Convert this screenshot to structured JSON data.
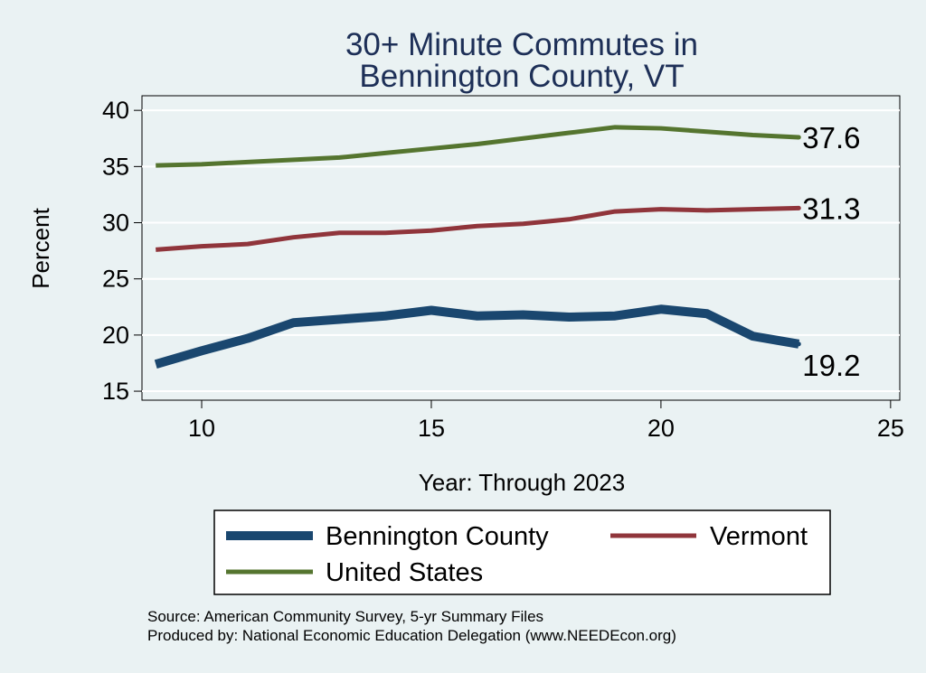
{
  "chart_data": {
    "type": "line",
    "title": [
      "30+ Minute Commutes in",
      "Bennington County, VT"
    ],
    "xlabel": "Year: Through 2023",
    "ylabel": "Percent",
    "xlim": [
      8.7,
      25.2
    ],
    "ylim": [
      14.2,
      41.3
    ],
    "xticks": [
      10,
      15,
      20,
      25
    ],
    "yticks": [
      15,
      20,
      25,
      30,
      35,
      40
    ],
    "grid": true,
    "legend_position": "bottom",
    "series": [
      {
        "name": "Bennington County",
        "color": "#1a476f",
        "width": "thick",
        "x": [
          9,
          10,
          11,
          12,
          13,
          14,
          15,
          16,
          17,
          18,
          19,
          20,
          21,
          22,
          23
        ],
        "values": [
          17.4,
          18.6,
          19.7,
          21.1,
          21.4,
          21.7,
          22.2,
          21.7,
          21.8,
          21.6,
          21.7,
          22.3,
          21.9,
          19.9,
          19.2
        ],
        "end_label": "19.2"
      },
      {
        "name": "Vermont",
        "color": "#90353b",
        "width": "medium",
        "x": [
          9,
          10,
          11,
          12,
          13,
          14,
          15,
          16,
          17,
          18,
          19,
          20,
          21,
          22,
          23
        ],
        "values": [
          27.6,
          27.9,
          28.1,
          28.7,
          29.1,
          29.1,
          29.3,
          29.7,
          29.9,
          30.3,
          31.0,
          31.2,
          31.1,
          31.2,
          31.3
        ],
        "end_label": "31.3"
      },
      {
        "name": "United States",
        "color": "#55752f",
        "width": "medium",
        "x": [
          9,
          10,
          11,
          12,
          13,
          14,
          15,
          16,
          17,
          18,
          19,
          20,
          21,
          22,
          23
        ],
        "values": [
          35.1,
          35.2,
          35.4,
          35.6,
          35.8,
          36.2,
          36.6,
          37.0,
          37.5,
          38.0,
          38.5,
          38.4,
          38.1,
          37.8,
          37.6
        ],
        "end_label": "37.6"
      }
    ],
    "legend": [
      {
        "label": "Bennington County"
      },
      {
        "label": "Vermont"
      },
      {
        "label": "United States"
      }
    ],
    "notes": [
      "Source: American Community Survey, 5-yr Summary Files",
      "Produced by: National Economic Education Delegation (www.NEEDEcon.org)"
    ]
  }
}
